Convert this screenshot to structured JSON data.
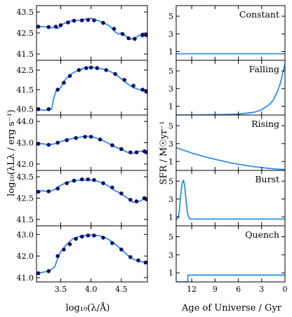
{
  "colors": {
    "spectrum": "#2e8fe8",
    "photometry": "#0b0b6e",
    "sfh": "#2e8fe8",
    "frame": "#000000"
  },
  "chart_data": [
    {
      "type": "line",
      "name": "spectra",
      "xlabel": "log₁₀(λ/Å)",
      "ylabel": "log₁₀(λLλ / erg s⁻¹)",
      "xlim": [
        3.1,
        4.93
      ],
      "xticks": [
        3.5,
        4.0,
        4.5
      ],
      "xtick_labels": [
        "3.5",
        "4.0",
        "4.5"
      ],
      "panels": [
        {
          "ylim": [
            41.2,
            43.8
          ],
          "yticks": [
            41.5,
            42.5,
            43.5
          ],
          "ytick_labels": [
            "41.5",
            "42.5",
            "43.5"
          ],
          "spectrum": {
            "x": [
              3.12,
              3.2,
              3.3,
              3.35,
              3.4,
              3.45,
              3.5,
              3.55,
              3.6,
              3.65,
              3.7,
              3.8,
              3.9,
              4.0,
              4.1,
              4.2,
              4.3,
              4.35,
              4.4,
              4.45,
              4.5,
              4.55,
              4.6,
              4.65,
              4.7,
              4.75,
              4.8,
              4.85,
              4.9,
              4.93
            ],
            "y": [
              42.8,
              42.8,
              42.78,
              42.75,
              42.8,
              42.7,
              42.85,
              42.95,
              43.0,
              43.05,
              43.1,
              43.1,
              43.15,
              43.2,
              43.1,
              43.0,
              42.85,
              42.7,
              42.55,
              42.45,
              42.5,
              42.4,
              42.3,
              42.2,
              42.25,
              42.3,
              42.4,
              42.3,
              42.45,
              42.3
            ]
          },
          "photometry": {
            "x": [
              3.13,
              3.3,
              3.42,
              3.5,
              3.62,
              3.72,
              3.85,
              3.95,
              4.05,
              4.2,
              4.38,
              4.52,
              4.62,
              4.72,
              4.85,
              4.91
            ],
            "y": [
              42.8,
              42.78,
              42.8,
              42.87,
              43.0,
              43.08,
              43.1,
              43.12,
              43.1,
              42.98,
              42.7,
              42.45,
              42.25,
              42.22,
              42.42,
              42.4
            ]
          }
        },
        {
          "ylim": [
            40.2,
            43.0
          ],
          "yticks": [
            40.5,
            41.5,
            42.5
          ],
          "ytick_labels": [
            "40.5",
            "41.5",
            "42.5"
          ],
          "spectrum": {
            "x": [
              3.12,
              3.2,
              3.3,
              3.35,
              3.38,
              3.42,
              3.45,
              3.5,
              3.55,
              3.6,
              3.7,
              3.8,
              3.9,
              4.0,
              4.1,
              4.2,
              4.3,
              4.4,
              4.5,
              4.6,
              4.7,
              4.8,
              4.9,
              4.93
            ],
            "y": [
              40.5,
              40.45,
              40.45,
              40.5,
              41.0,
              41.4,
              41.5,
              41.6,
              41.9,
              42.1,
              42.35,
              42.5,
              42.62,
              42.65,
              42.6,
              42.55,
              42.45,
              42.3,
              42.05,
              41.8,
              41.6,
              41.5,
              41.4,
              41.35
            ]
          },
          "photometry": {
            "x": [
              3.13,
              3.3,
              3.45,
              3.55,
              3.65,
              3.8,
              3.92,
              4.0,
              4.1,
              4.25,
              4.4,
              4.55,
              4.7,
              4.85,
              4.91
            ],
            "y": [
              40.5,
              40.5,
              41.5,
              41.85,
              42.2,
              42.5,
              42.6,
              42.63,
              42.6,
              42.5,
              42.3,
              42.0,
              41.7,
              41.5,
              41.4
            ]
          }
        },
        {
          "ylim": [
            41.7,
            44.3
          ],
          "yticks": [
            42.0,
            43.0,
            44.0
          ],
          "ytick_labels": [
            "42.0",
            "43.0",
            "44.0"
          ],
          "spectrum": {
            "x": [
              3.12,
              3.2,
              3.3,
              3.4,
              3.5,
              3.6,
              3.7,
              3.8,
              3.9,
              4.0,
              4.1,
              4.2,
              4.3,
              4.4,
              4.5,
              4.6,
              4.7,
              4.8,
              4.9,
              4.93
            ],
            "y": [
              42.95,
              42.95,
              42.9,
              42.95,
              43.05,
              43.15,
              43.2,
              43.25,
              43.3,
              43.3,
              43.2,
              43.1,
              42.95,
              42.8,
              42.7,
              42.55,
              42.5,
              42.6,
              42.6,
              42.5
            ]
          },
          "photometry": {
            "x": [
              3.13,
              3.3,
              3.45,
              3.6,
              3.75,
              3.9,
              4.0,
              4.15,
              4.35,
              4.5,
              4.65,
              4.75,
              4.88,
              4.91
            ],
            "y": [
              42.95,
              42.9,
              43.0,
              43.12,
              43.22,
              43.28,
              43.28,
              43.15,
              42.88,
              42.7,
              42.55,
              42.55,
              42.6,
              42.55
            ]
          }
        },
        {
          "ylim": [
            41.2,
            43.8
          ],
          "yticks": [
            41.5,
            42.5,
            43.5
          ],
          "ytick_labels": [
            "41.5",
            "42.5",
            "43.5"
          ],
          "spectrum": {
            "x": [
              3.12,
              3.2,
              3.3,
              3.4,
              3.5,
              3.6,
              3.7,
              3.8,
              3.9,
              4.0,
              4.1,
              4.2,
              4.3,
              4.4,
              4.5,
              4.6,
              4.7,
              4.8,
              4.9,
              4.93
            ],
            "y": [
              42.8,
              42.85,
              42.8,
              42.9,
              43.1,
              43.25,
              43.3,
              43.35,
              43.35,
              43.35,
              43.3,
              43.2,
              43.05,
              42.85,
              42.7,
              42.5,
              42.3,
              42.35,
              42.5,
              42.4
            ]
          },
          "photometry": {
            "x": [
              3.13,
              3.3,
              3.45,
              3.6,
              3.72,
              3.85,
              3.95,
              4.05,
              4.2,
              4.35,
              4.5,
              4.65,
              4.75,
              4.88,
              4.91
            ],
            "y": [
              42.8,
              42.82,
              42.95,
              43.2,
              43.32,
              43.38,
              43.38,
              43.35,
              43.2,
              43.0,
              42.72,
              42.42,
              42.35,
              42.5,
              42.45
            ]
          }
        },
        {
          "ylim": [
            40.8,
            43.4
          ],
          "yticks": [
            41.0,
            42.0,
            43.0
          ],
          "ytick_labels": [
            "41.0",
            "42.0",
            "43.0"
          ],
          "spectrum": {
            "x": [
              3.12,
              3.2,
              3.3,
              3.4,
              3.45,
              3.5,
              3.6,
              3.7,
              3.8,
              3.9,
              4.0,
              4.1,
              4.2,
              4.3,
              4.4,
              4.5,
              4.6,
              4.7,
              4.8,
              4.9,
              4.93
            ],
            "y": [
              41.2,
              41.25,
              41.3,
              41.5,
              41.9,
              42.2,
              42.55,
              42.8,
              42.9,
              42.95,
              42.97,
              42.95,
              42.9,
              42.75,
              42.55,
              42.3,
              42.05,
              41.85,
              41.75,
              41.7,
              41.65
            ]
          },
          "photometry": {
            "x": [
              3.13,
              3.3,
              3.45,
              3.55,
              3.65,
              3.75,
              3.85,
              3.95,
              4.05,
              4.2,
              4.35,
              4.5,
              4.65,
              4.78,
              4.9
            ],
            "y": [
              41.2,
              41.3,
              42.0,
              42.3,
              42.55,
              42.8,
              42.9,
              42.95,
              42.95,
              42.85,
              42.6,
              42.3,
              41.95,
              41.8,
              41.7
            ]
          }
        }
      ]
    },
    {
      "type": "line",
      "name": "star_formation_histories",
      "xlabel": "Age of Universe / Gyr",
      "ylabel": "SFR / M☉yr⁻¹",
      "xlim": [
        14.0,
        0.0
      ],
      "xticks": [
        12,
        9,
        6,
        3,
        0
      ],
      "xtick_labels": [
        "12",
        "9",
        "6",
        "3",
        "0"
      ],
      "panels": [
        {
          "title": "Constant",
          "ylim": [
            0,
            6.2
          ],
          "yticks": [
            1,
            3,
            5
          ],
          "ytick_labels": [
            "1",
            "3",
            "5"
          ],
          "t": [
            14.0,
            0.0
          ],
          "sfr": [
            0.75,
            0.75
          ]
        },
        {
          "title": "Falling",
          "ylim": [
            0,
            6.2
          ],
          "yticks": [
            1,
            3,
            5
          ],
          "ytick_labels": [
            "1",
            "3",
            "5"
          ],
          "t": [
            14.0,
            12,
            10,
            8,
            6,
            4,
            3,
            2,
            1.5,
            1.0,
            0.6,
            0.3,
            0.0
          ],
          "sfr": [
            0.0,
            0.0,
            0.02,
            0.05,
            0.1,
            0.3,
            0.6,
            1.2,
            1.7,
            2.6,
            3.6,
            4.7,
            5.8
          ]
        },
        {
          "title": "Rising",
          "ylim": [
            0,
            6.2
          ],
          "yticks": [
            1,
            3,
            5
          ],
          "ytick_labels": [
            "1",
            "3",
            "5"
          ],
          "t": [
            14.0,
            13,
            12,
            11,
            10,
            9,
            8,
            7,
            6,
            5,
            4,
            3,
            2,
            1,
            0.0
          ],
          "sfr": [
            2.55,
            2.25,
            1.95,
            1.7,
            1.45,
            1.25,
            1.05,
            0.85,
            0.7,
            0.55,
            0.42,
            0.32,
            0.22,
            0.15,
            0.1
          ]
        },
        {
          "title": "Burst",
          "ylim": [
            0,
            6.2
          ],
          "yticks": [
            1,
            3,
            5
          ],
          "ytick_labels": [
            "1",
            "3",
            "5"
          ],
          "t": [
            14.0,
            13.8,
            13.6,
            13.4,
            13.2,
            13.05,
            12.9,
            12.7,
            12.5,
            12.3,
            12.1,
            11.9,
            0.0
          ],
          "sfr": [
            0.75,
            0.8,
            1.6,
            3.6,
            4.9,
            5.1,
            4.4,
            2.6,
            1.2,
            0.8,
            0.75,
            0.75,
            0.75
          ]
        },
        {
          "title": "Quench",
          "ylim": [
            0,
            6.2
          ],
          "yticks": [
            1,
            3,
            5
          ],
          "ytick_labels": [
            "1",
            "3",
            "5"
          ],
          "t": [
            14.0,
            12.5,
            12.5,
            0.0
          ],
          "sfr": [
            0.0,
            0.0,
            0.75,
            0.75
          ]
        }
      ]
    }
  ]
}
